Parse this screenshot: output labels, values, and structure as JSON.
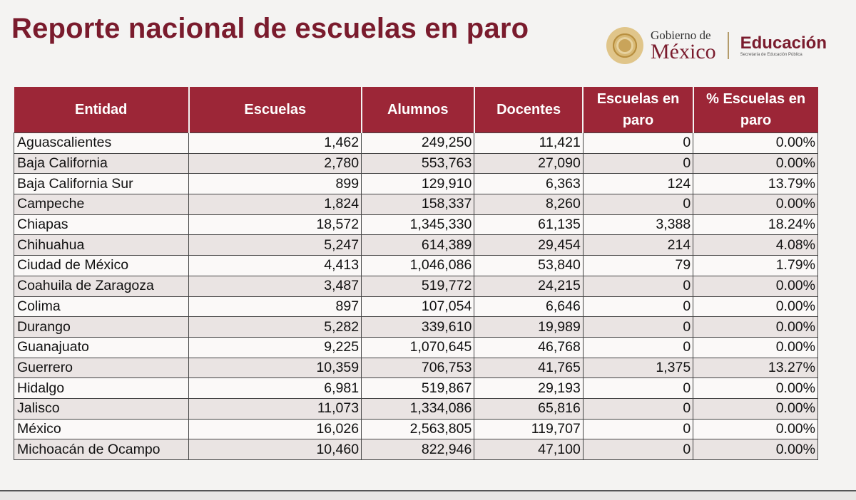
{
  "title": "Reporte nacional de escuelas en paro",
  "logo": {
    "gobierno_line1": "Gobierno de",
    "gobierno_line2": "México",
    "educacion": "Educación",
    "educacion_sub": "Secretaría de Educación Pública"
  },
  "table": {
    "headers": [
      "Entidad",
      "Escuelas",
      "Alumnos",
      "Docentes",
      "Escuelas en paro",
      "% Escuelas en paro"
    ],
    "rows": [
      [
        "Aguascalientes",
        "1,462",
        "249,250",
        "11,421",
        "0",
        "0.00%"
      ],
      [
        "Baja California",
        "2,780",
        "553,763",
        "27,090",
        "0",
        "0.00%"
      ],
      [
        "Baja California Sur",
        "899",
        "129,910",
        "6,363",
        "124",
        "13.79%"
      ],
      [
        "Campeche",
        "1,824",
        "158,337",
        "8,260",
        "0",
        "0.00%"
      ],
      [
        "Chiapas",
        "18,572",
        "1,345,330",
        "61,135",
        "3,388",
        "18.24%"
      ],
      [
        "Chihuahua",
        "5,247",
        "614,389",
        "29,454",
        "214",
        "4.08%"
      ],
      [
        "Ciudad de México",
        "4,413",
        "1,046,086",
        "53,840",
        "79",
        "1.79%"
      ],
      [
        "Coahuila de Zaragoza",
        "3,487",
        "519,772",
        "24,215",
        "0",
        "0.00%"
      ],
      [
        "Colima",
        "897",
        "107,054",
        "6,646",
        "0",
        "0.00%"
      ],
      [
        "Durango",
        "5,282",
        "339,610",
        "19,989",
        "0",
        "0.00%"
      ],
      [
        "Guanajuato",
        "9,225",
        "1,070,645",
        "46,768",
        "0",
        "0.00%"
      ],
      [
        "Guerrero",
        "10,359",
        "706,753",
        "41,765",
        "1,375",
        "13.27%"
      ],
      [
        "Hidalgo",
        "6,981",
        "519,867",
        "29,193",
        "0",
        "0.00%"
      ],
      [
        "Jalisco",
        "11,073",
        "1,334,086",
        "65,816",
        "0",
        "0.00%"
      ],
      [
        "México",
        "16,026",
        "2,563,805",
        "119,707",
        "0",
        "0.00%"
      ],
      [
        "Michoacán de Ocampo",
        "10,460",
        "822,946",
        "47,100",
        "0",
        "0.00%"
      ]
    ]
  },
  "colors": {
    "title": "#7a1b2d",
    "header_bg": "#9c2637"
  }
}
